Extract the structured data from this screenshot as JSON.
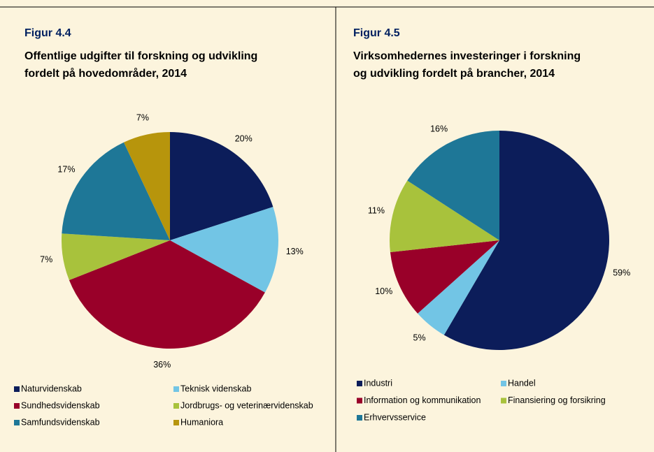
{
  "chart_data": [
    {
      "type": "pie",
      "figure_label": "Figur 4.4",
      "title": [
        "Offentlige udgifter til forskning og udvikling",
        "fordelt på hovedområder, 2014"
      ],
      "categories": [
        "Naturvidenskab",
        "Teknisk videnskab",
        "Sundhedsvidenskab",
        "Jordbrugs- og veterinærvidenskab",
        "Samfundsvidenskab",
        "Humaniora"
      ],
      "values": [
        20,
        13,
        36,
        7,
        17,
        7
      ],
      "value_labels": [
        "20%",
        "13%",
        "36%",
        "7%",
        "17%",
        "7%"
      ],
      "colors": [
        "#0c1d5a",
        "#72c5e5",
        "#990029",
        "#a8c23c",
        "#1e7797",
        "#b7950c"
      ]
    },
    {
      "type": "pie",
      "figure_label": "Figur 4.5",
      "title": [
        "Virksomhedernes investeringer i forskning",
        "og udvikling fordelt på brancher, 2014"
      ],
      "categories": [
        "Industri",
        "Handel",
        "Information og kommunikation",
        "Finansiering og forsikring",
        "Erhvervsservice"
      ],
      "values": [
        59,
        5,
        10,
        11,
        16
      ],
      "value_labels": [
        "59%",
        "5%",
        "10%",
        "11%",
        "16%"
      ],
      "colors": [
        "#0c1d5a",
        "#72c5e5",
        "#990029",
        "#a8c23c",
        "#1e7797"
      ]
    }
  ]
}
